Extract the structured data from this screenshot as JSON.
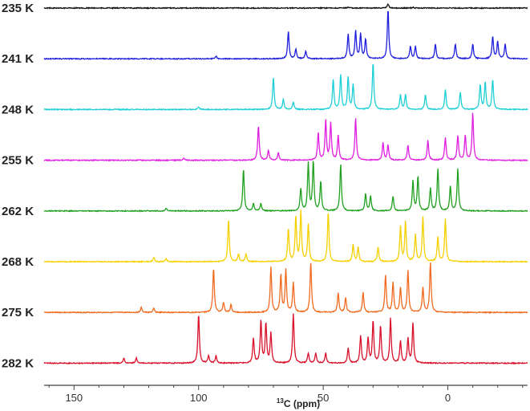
{
  "chart_data": {
    "type": "line",
    "title": "",
    "xlabel_sup": "13",
    "xlabel_main": "C (ppm)",
    "x_reversed": true,
    "xlim": [
      162,
      -32
    ],
    "x_ticks": [
      150,
      100,
      50,
      0
    ],
    "x_tick_labels": [
      "150",
      "100",
      "50",
      "0"
    ],
    "grid": false,
    "series": [
      {
        "name": "235 K",
        "color": "#111111",
        "peaks": [
          [
            24,
            0.08
          ],
          [
            14,
            0.02
          ],
          [
            40,
            0.02
          ]
        ]
      },
      {
        "name": "241 K",
        "color": "#1f1fdc",
        "peaks": [
          [
            64,
            0.55
          ],
          [
            61,
            0.2
          ],
          [
            57,
            0.15
          ],
          [
            40,
            0.5
          ],
          [
            37,
            0.55
          ],
          [
            35,
            0.5
          ],
          [
            33,
            0.4
          ],
          [
            24,
            1.0
          ],
          [
            15,
            0.25
          ],
          [
            13,
            0.25
          ],
          [
            5,
            0.3
          ],
          [
            -3,
            0.3
          ],
          [
            -10,
            0.3
          ],
          [
            -18,
            0.45
          ],
          [
            -20,
            0.35
          ],
          [
            -23,
            0.3
          ],
          [
            93,
            0.05
          ]
        ]
      },
      {
        "name": "248 K",
        "color": "#1fcfd6",
        "peaks": [
          [
            70,
            0.65
          ],
          [
            66,
            0.2
          ],
          [
            62,
            0.15
          ],
          [
            46,
            0.6
          ],
          [
            43,
            0.7
          ],
          [
            40,
            0.65
          ],
          [
            38,
            0.5
          ],
          [
            30,
            0.95
          ],
          [
            19,
            0.3
          ],
          [
            17,
            0.3
          ],
          [
            9,
            0.3
          ],
          [
            1,
            0.4
          ],
          [
            -5,
            0.35
          ],
          [
            -13,
            0.5
          ],
          [
            -15,
            0.55
          ],
          [
            -18,
            0.6
          ],
          [
            100,
            0.05
          ]
        ]
      },
      {
        "name": "255 K",
        "color": "#e01fe0",
        "peaks": [
          [
            76,
            0.7
          ],
          [
            72,
            0.2
          ],
          [
            68,
            0.15
          ],
          [
            52,
            0.55
          ],
          [
            49,
            0.8
          ],
          [
            47,
            0.75
          ],
          [
            44,
            0.5
          ],
          [
            37,
            0.85
          ],
          [
            26,
            0.35
          ],
          [
            24,
            0.3
          ],
          [
            16,
            0.3
          ],
          [
            8,
            0.4
          ],
          [
            1,
            0.45
          ],
          [
            -4,
            0.5
          ],
          [
            -7,
            0.5
          ],
          [
            -10,
            0.95
          ],
          [
            106,
            0.05
          ]
        ]
      },
      {
        "name": "262 K",
        "color": "#20a020",
        "peaks": [
          [
            82,
            0.85
          ],
          [
            78,
            0.15
          ],
          [
            75,
            0.15
          ],
          [
            59,
            0.45
          ],
          [
            56,
            0.95
          ],
          [
            54,
            1.0
          ],
          [
            51,
            0.6
          ],
          [
            43,
            0.95
          ],
          [
            33,
            0.35
          ],
          [
            31,
            0.3
          ],
          [
            22,
            0.3
          ],
          [
            14,
            0.6
          ],
          [
            12,
            0.7
          ],
          [
            7,
            0.45
          ],
          [
            4,
            0.85
          ],
          [
            -1,
            0.5
          ],
          [
            -4,
            0.85
          ],
          [
            113,
            0.05
          ]
        ]
      },
      {
        "name": "268 K",
        "color": "#f5d000",
        "peaks": [
          [
            88,
            0.85
          ],
          [
            84,
            0.15
          ],
          [
            81,
            0.15
          ],
          [
            64,
            0.65
          ],
          [
            61,
            0.9
          ],
          [
            59,
            1.0
          ],
          [
            56,
            0.75
          ],
          [
            48,
            1.0
          ],
          [
            38,
            0.35
          ],
          [
            36,
            0.3
          ],
          [
            28,
            0.3
          ],
          [
            19,
            0.7
          ],
          [
            17,
            0.8
          ],
          [
            13,
            0.55
          ],
          [
            10,
            0.9
          ],
          [
            4,
            0.5
          ],
          [
            1,
            0.85
          ],
          [
            118,
            0.08
          ],
          [
            113,
            0.06
          ]
        ]
      },
      {
        "name": "275 K",
        "color": "#f06a1f",
        "peaks": [
          [
            94,
            0.9
          ],
          [
            90,
            0.2
          ],
          [
            87,
            0.15
          ],
          [
            71,
            0.9
          ],
          [
            67,
            0.75
          ],
          [
            65,
            0.85
          ],
          [
            62,
            0.6
          ],
          [
            55,
            1.0
          ],
          [
            44,
            0.4
          ],
          [
            41,
            0.3
          ],
          [
            34,
            0.4
          ],
          [
            25,
            0.75
          ],
          [
            22,
            0.6
          ],
          [
            19,
            0.5
          ],
          [
            16,
            0.85
          ],
          [
            10,
            0.5
          ],
          [
            7,
            1.0
          ],
          [
            123,
            0.1
          ],
          [
            118,
            0.08
          ]
        ]
      },
      {
        "name": "282 K",
        "color": "#d8102a",
        "peaks": [
          [
            100,
            1.0
          ],
          [
            96,
            0.15
          ],
          [
            93,
            0.15
          ],
          [
            78,
            0.5
          ],
          [
            75,
            0.85
          ],
          [
            73,
            0.8
          ],
          [
            71,
            0.6
          ],
          [
            62,
            1.0
          ],
          [
            56,
            0.2
          ],
          [
            53,
            0.2
          ],
          [
            49,
            0.2
          ],
          [
            40,
            0.3
          ],
          [
            35,
            0.55
          ],
          [
            32,
            0.5
          ],
          [
            30,
            0.85
          ],
          [
            27,
            0.75
          ],
          [
            23,
            0.9
          ],
          [
            19,
            0.45
          ],
          [
            16,
            0.5
          ],
          [
            14,
            0.8
          ],
          [
            130,
            0.1
          ],
          [
            125,
            0.1
          ]
        ]
      }
    ]
  }
}
